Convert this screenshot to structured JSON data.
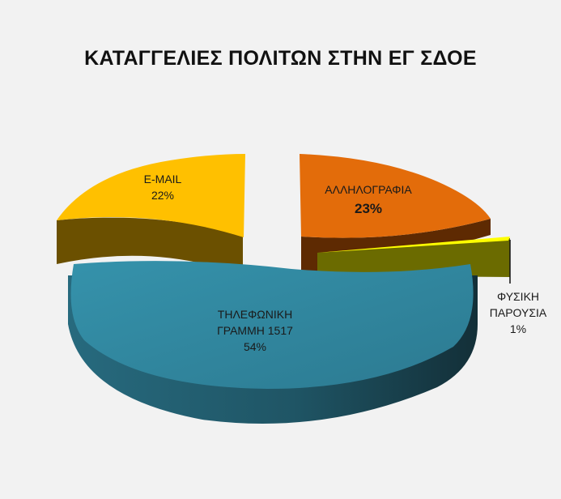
{
  "chart_data": {
    "type": "pie",
    "title": "ΚΑΤΑΓΓΕΛΙΕΣ ΠΟΛΙΤΩΝ ΣΤΗΝ ΕΓ ΣΔΟΕ",
    "three_d": true,
    "exploded": true,
    "slices": [
      {
        "label": "ΤΗΛΕΦΩΝΙΚΗ ΓΡΑΜΜΗ 1517",
        "label_line1": "ΤΗΛΕΦΩΝΙΚΗ",
        "label_line2": "ΓΡΑΜΜΗ 1517",
        "value": 54,
        "pct_text": "54%",
        "color": "#31849b",
        "side_color": "#1d4f5e"
      },
      {
        "label": "E-MAIL",
        "value": 22,
        "pct_text": "22%",
        "color": "#ffc000",
        "side_color": "#6b5000"
      },
      {
        "label": "ΑΛΛΗΛΟΓΡΑΦΙΑ",
        "value": 23,
        "pct_text": "23%",
        "color": "#e36c0a",
        "side_color": "#5e2a02"
      },
      {
        "label": "ΦΥΣΙΚΗ ΠΑΡΟΥΣΙΑ",
        "label_line1": "ΦΥΣΙΚΗ",
        "label_line2": "ΠΑΡΟΥΣΙΑ",
        "value": 1,
        "pct_text": "1%",
        "color": "#ffff00",
        "side_color": "#6b6b00"
      }
    ]
  }
}
